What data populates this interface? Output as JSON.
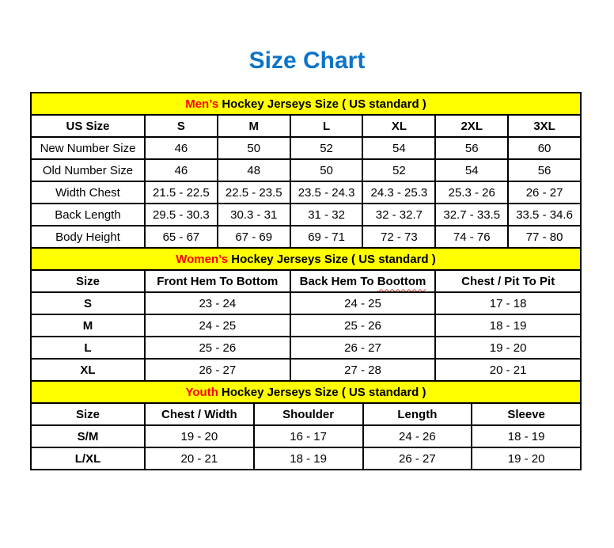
{
  "page": {
    "title": "Size Chart"
  },
  "colors": {
    "title_blue": "#0d74c7",
    "banner_yellow": "#ffff00",
    "highlight_red": "#ff0000",
    "border_black": "#000000",
    "squiggle_red": "#cd3a2e"
  },
  "tables": [
    {
      "name": "mens",
      "banner": {
        "highlight": "Men’s",
        "rest": " Hockey Jerseys Size ( US standard )"
      },
      "columns": [
        "US Size",
        "S",
        "M",
        "L",
        "XL",
        "2XL",
        "3XL"
      ],
      "label_bold": false,
      "rows": [
        {
          "label": "New Number Size",
          "values": [
            "46",
            "50",
            "52",
            "54",
            "56",
            "60"
          ]
        },
        {
          "label": "Old Number Size",
          "values": [
            "46",
            "48",
            "50",
            "52",
            "54",
            "56"
          ]
        },
        {
          "label": "Width Chest",
          "values": [
            "21.5 - 22.5",
            "22.5 - 23.5",
            "23.5 - 24.3",
            "24.3 - 25.3",
            "25.3 - 26",
            "26 - 27"
          ]
        },
        {
          "label": "Back Length",
          "values": [
            "29.5 - 30.3",
            "30.3 - 31",
            "31 - 32",
            "32 - 32.7",
            "32.7 - 33.5",
            "33.5 - 34.6"
          ]
        },
        {
          "label": "Body Height",
          "values": [
            "65 - 67",
            "67 - 69",
            "69 - 71",
            "72 - 73",
            "74 - 76",
            "77 - 80"
          ]
        }
      ]
    },
    {
      "name": "womens",
      "banner": {
        "highlight": "Women’s",
        "rest": " Hockey Jerseys Size ( US standard )"
      },
      "columns": [
        "Size",
        "Front Hem To Bottom",
        "Back Hem To Boottom",
        "Chest / Pit To Pit"
      ],
      "squiggle": {
        "col": 2,
        "word": "Boottom"
      },
      "label_bold": true,
      "rows": [
        {
          "label": "S",
          "values": [
            "23 - 24",
            "24 - 25",
            "17 - 18"
          ]
        },
        {
          "label": "M",
          "values": [
            "24 - 25",
            "25 - 26",
            "18 - 19"
          ]
        },
        {
          "label": "L",
          "values": [
            "25 - 26",
            "26 - 27",
            "19 - 20"
          ]
        },
        {
          "label": "XL",
          "values": [
            "26 - 27",
            "27 - 28",
            "20 - 21"
          ]
        }
      ]
    },
    {
      "name": "youth",
      "banner": {
        "highlight": "Youth",
        "rest": " Hockey Jerseys Size ( US standard )"
      },
      "columns": [
        "Size",
        "Chest / Width",
        "Shoulder",
        "Length",
        "Sleeve"
      ],
      "label_bold": true,
      "rows": [
        {
          "label": "S/M",
          "values": [
            "19 - 20",
            "16 - 17",
            "24 - 26",
            "18 - 19"
          ]
        },
        {
          "label": "L/XL",
          "values": [
            "20 - 21",
            "18 - 19",
            "26 - 27",
            "19 - 20"
          ]
        }
      ]
    }
  ]
}
